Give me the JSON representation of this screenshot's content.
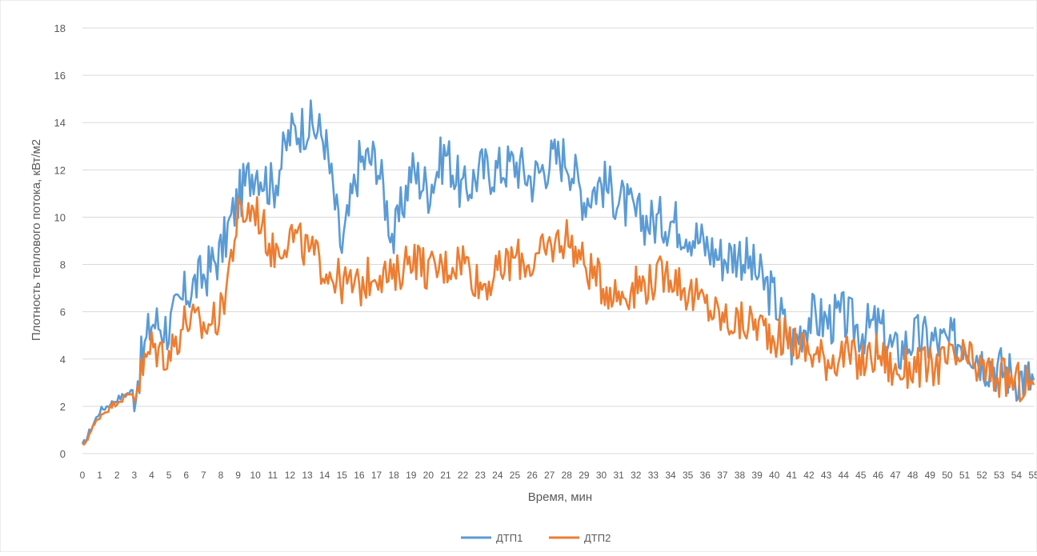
{
  "chart_data": {
    "type": "line",
    "title": "",
    "xlabel": "Время, мин",
    "ylabel": "Плотность теплового потока, кВт/м2",
    "ylim": [
      0,
      18
    ],
    "yticks": [
      "0",
      "2",
      "4",
      "6",
      "8",
      "10",
      "12",
      "14",
      "16",
      "18"
    ],
    "categories": [
      "0",
      "1",
      "2",
      "3",
      "4",
      "5",
      "6",
      "7",
      "8",
      "9",
      "10",
      "11",
      "12",
      "13",
      "14",
      "15",
      "16",
      "17",
      "18",
      "19",
      "20",
      "21",
      "22",
      "23",
      "24",
      "25",
      "26",
      "27",
      "28",
      "29",
      "30",
      "31",
      "32",
      "33",
      "34",
      "35",
      "36",
      "37",
      "38",
      "39",
      "40",
      "41",
      "42",
      "43",
      "44",
      "45",
      "46",
      "47",
      "48",
      "49",
      "50",
      "51",
      "52",
      "53",
      "54",
      "55"
    ],
    "grid": true,
    "legend_position": "bottom",
    "series": [
      {
        "name": "ДТП1",
        "color": "#5b9bd5",
        "values": [
          0.3,
          1.8,
          2.3,
          2.7,
          5.6,
          5.3,
          6.8,
          7.5,
          8.5,
          10.8,
          12.2,
          11.2,
          13.5,
          14.0,
          13.4,
          8.6,
          12.3,
          12.5,
          9.0,
          12.0,
          11.2,
          12.8,
          11.0,
          12.0,
          12.0,
          12.3,
          11.6,
          12.4,
          12.6,
          10.8,
          11.5,
          10.8,
          10.0,
          9.8,
          9.9,
          9.5,
          8.8,
          8.3,
          8.5,
          7.6,
          6.6,
          4.6,
          5.8,
          5.6,
          5.8,
          5.2,
          5.4,
          4.2,
          4.9,
          4.8,
          4.6,
          4.9,
          4.0,
          3.6,
          3.3,
          3.1
        ]
      },
      {
        "name": "ДТП2",
        "color": "#ed7d31",
        "values": [
          0.3,
          1.6,
          2.2,
          2.6,
          4.5,
          4.2,
          5.7,
          5.3,
          5.9,
          10.0,
          10.4,
          8.5,
          9.3,
          8.6,
          7.9,
          7.2,
          7.0,
          7.8,
          7.3,
          8.5,
          7.7,
          7.9,
          8.3,
          7.1,
          7.6,
          8.3,
          8.0,
          8.7,
          9.2,
          8.0,
          7.2,
          6.7,
          7.1,
          7.3,
          7.7,
          6.8,
          6.3,
          5.7,
          5.5,
          5.5,
          5.0,
          4.8,
          4.3,
          4.0,
          4.2,
          3.8,
          4.3,
          3.4,
          3.7,
          3.6,
          3.9,
          4.0,
          3.5,
          3.2,
          3.0,
          2.9
        ]
      }
    ]
  }
}
